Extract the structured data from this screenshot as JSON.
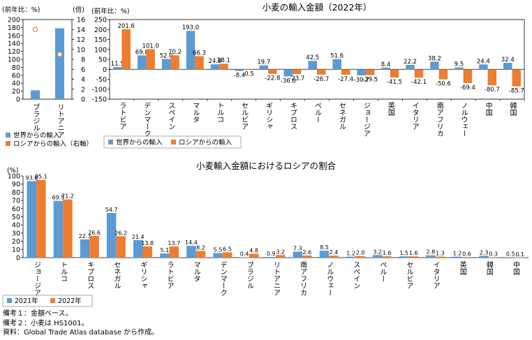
{
  "colors": {
    "world": "#5b9bd5",
    "russia": "#ed7d31",
    "y2021": "#5b9bd5",
    "y2022": "#ed7d31",
    "axis": "#000000"
  },
  "chart_data": [
    {
      "id": "left",
      "type": "bar+scatter",
      "left_unit": "(前年比：%)",
      "right_unit": "(倍)",
      "categories": [
        "ブラジル",
        "リトアニア"
      ],
      "ylim_left": [
        0,
        200
      ],
      "ylim_right": [
        0,
        16
      ],
      "left_ticks": [
        "0",
        "20",
        "40",
        "60",
        "80",
        "100",
        "120",
        "140",
        "160",
        "180",
        "200"
      ],
      "right_ticks": [
        "0",
        "2",
        "4",
        "6",
        "8",
        "10",
        "12",
        "14",
        "16"
      ],
      "world_values": [
        22,
        178
      ],
      "russia_values_right_axis": [
        14.0,
        9.0
      ],
      "legend": [
        "世界からの輸入",
        "ロシアからの輸入（右軸）"
      ],
      "legend_position": "below"
    },
    {
      "id": "top",
      "type": "bar",
      "title": "小麦の輸入金額（2022年）",
      "y_unit": "(前年比：%)",
      "ylim": [
        -150,
        250
      ],
      "ticks": [
        "-150",
        "-100",
        "-50",
        "0",
        "50",
        "100",
        "150",
        "200",
        "250"
      ],
      "categories": [
        "ラトビア",
        "デンマーク",
        "スペイン",
        "マルタ",
        "トルコ",
        "セルビア",
        "ギリシャ",
        "キプロス",
        "ペルー",
        "セネガル",
        "ジョージア",
        "英国",
        "イタリア",
        "南アフリカ",
        "ノルウェー",
        "中国",
        "韓国"
      ],
      "series": [
        {
          "name": "世界からの輸入",
          "values": [
            11.5,
            69.8,
            52.0,
            193.0,
            24.9,
            -8.4,
            19.7,
            -36.0,
            42.5,
            51.6,
            -30.7,
            8.4,
            22.2,
            38.2,
            9.5,
            24.4,
            32.4
          ]
        },
        {
          "name": "ロシアからの輸入",
          "values": [
            201.6,
            101.0,
            70.2,
            66.3,
            28.1,
            -0.5,
            -22.8,
            -23.7,
            -26.7,
            -27.4,
            -29.5,
            -41.5,
            -42.1,
            -50.6,
            -69.4,
            -80.7,
            -85.7
          ]
        }
      ],
      "labels_a": [
        "11.5",
        "69.8",
        "52.0",
        "193.0",
        "24.9",
        "-8.4",
        "19.7",
        "-36.0",
        "42.5",
        "51.6",
        "-30.7",
        "8.4",
        "22.2",
        "38.2",
        "9.5",
        "24.4",
        "32.4"
      ],
      "labels_b": [
        "201.6",
        "101.0",
        "70.2",
        "66.3",
        "28.1",
        "-0.5",
        "-22.8",
        "-23.7",
        "-26.7",
        "-27.4",
        "-29.5",
        "-41.5",
        "-42.1",
        "-50.6",
        "-69.4",
        "-80.7",
        "-85.7"
      ],
      "legend": [
        "世界からの輸入",
        "ロシアからの輸入"
      ],
      "legend_position": "below"
    },
    {
      "id": "bottom",
      "type": "bar",
      "title": "小麦輸入金額におけるロシアの割合",
      "y_unit": "(%)",
      "ylim": [
        0,
        100
      ],
      "ticks": [
        "0",
        "10",
        "20",
        "30",
        "40",
        "50",
        "60",
        "70",
        "80",
        "90",
        "100"
      ],
      "categories": [
        "ジョージア",
        "トルコ",
        "キプロス",
        "セネガル",
        "ギリシャ",
        "ラトビア",
        "マルタ",
        "デンマーク",
        "ブラジル",
        "リトアニア",
        "南アフリカ",
        "ノルウェー",
        "スペイン",
        "ペルー",
        "セルビア",
        "イタリア",
        "英国",
        "韓国",
        "中国"
      ],
      "series": [
        {
          "name": "2021年",
          "values": [
            93.6,
            69.5,
            22.3,
            54.7,
            21.4,
            5.1,
            14.4,
            5.5,
            0.4,
            0.9,
            7.3,
            8.5,
            1.2,
            3.2,
            1.5,
            2.8,
            1.2,
            2.3,
            0.5
          ]
        },
        {
          "name": "2022年",
          "values": [
            95.1,
            71.2,
            26.6,
            26.2,
            13.8,
            13.7,
            8.2,
            6.5,
            4.8,
            3.2,
            2.6,
            2.4,
            2.0,
            1.6,
            1.6,
            1.3,
            0.6,
            0.3,
            0.1
          ]
        }
      ],
      "labels_a": [
        "93.6",
        "69.5",
        "22.3",
        "54.7",
        "21.4",
        "5.1",
        "14.4",
        "5.5",
        "0.4",
        "0.9",
        "7.3",
        "8.5",
        "1.2",
        "3.2",
        "1.5",
        "2.8",
        "1.2",
        "2.3",
        "0.5"
      ],
      "labels_b": [
        "95.1",
        "71.2",
        "26.6",
        "26.2",
        "13.8",
        "13.7",
        "8.2",
        "6.5",
        "4.8",
        "3.2",
        "2.6",
        "2.4",
        "2.0",
        "1.6",
        "1.6",
        "1.3",
        "0.6",
        "0.3",
        "0.1"
      ],
      "legend": [
        "2021年",
        "2022年"
      ],
      "legend_position": "below"
    }
  ],
  "notes": [
    "備考１：金額ベース。",
    "備考２：小麦は HS1001。",
    "資料：Global Trade Atlas database から作成。"
  ]
}
